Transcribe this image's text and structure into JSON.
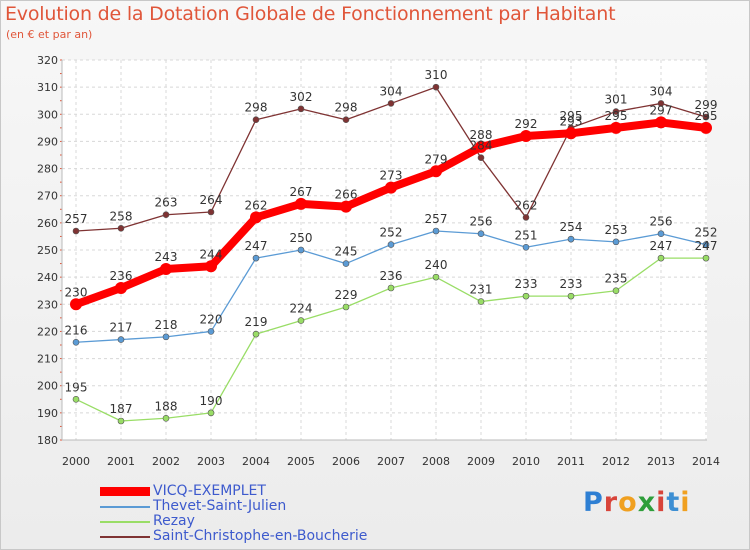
{
  "title": "Evolution de la Dotation Globale de Fonctionnement par Habitant",
  "subtitle": "(en € et par an)",
  "logo": {
    "text": "Proxiti",
    "letters": [
      "P",
      "r",
      "o",
      "x",
      "i",
      "t",
      "i"
    ],
    "letter_colors": [
      "#2e7fd3",
      "#d8443a",
      "#f0a020",
      "#2e9e3a",
      "#d8443a",
      "#3d8fd3",
      "#f0a020"
    ]
  },
  "chart_data": {
    "type": "line",
    "title": "Evolution de la Dotation Globale de Fonctionnement par Habitant",
    "subtitle": "(en € et par an)",
    "x": [
      "2000",
      "2001",
      "2002",
      "2003",
      "2004",
      "2005",
      "2006",
      "2007",
      "2008",
      "2009",
      "2010",
      "2011",
      "2012",
      "2013",
      "2014"
    ],
    "yticks": [
      180,
      190,
      200,
      210,
      220,
      230,
      240,
      250,
      260,
      270,
      280,
      290,
      300,
      310,
      320
    ],
    "ylim": [
      180,
      320
    ],
    "grid": true,
    "legend_position": "bottom-left",
    "series": [
      {
        "name": "VICQ-EXEMPLET",
        "color": "#ff0000",
        "values": [
          230,
          236,
          243,
          244,
          262,
          267,
          266,
          273,
          279,
          288,
          292,
          293,
          295,
          297,
          295
        ],
        "labels": [
          "230",
          "236",
          "243",
          "244",
          "262",
          "267",
          "266",
          "273",
          "279",
          "288",
          "292",
          "293",
          "295",
          "297",
          "295"
        ]
      },
      {
        "name": "Thevet-Saint-Julien",
        "color": "#5b9bd5",
        "values": [
          216,
          217,
          218,
          220,
          247,
          250,
          245,
          252,
          257,
          256,
          251,
          254,
          253,
          256,
          252
        ],
        "labels": [
          "216",
          "217",
          "218",
          "220",
          "247",
          "250",
          "245",
          "252",
          "257",
          "256",
          "251",
          "254",
          "253",
          "256",
          "252"
        ]
      },
      {
        "name": "Rezay",
        "color": "#99dd66",
        "values": [
          195,
          187,
          188,
          190,
          219,
          224,
          229,
          236,
          240,
          231,
          233,
          233,
          235,
          247,
          247
        ],
        "labels": [
          "195",
          "187",
          "188",
          "190",
          "219",
          "224",
          "229",
          "236",
          "240",
          "231",
          "233",
          "233",
          "235",
          "247",
          "247"
        ]
      },
      {
        "name": "Saint-Christophe-en-Boucherie",
        "color": "#7f3333",
        "values": [
          257,
          258,
          263,
          264,
          298,
          302,
          298,
          304,
          310,
          284,
          262,
          295,
          301,
          304,
          299
        ],
        "labels": [
          "257",
          "258",
          "263",
          "264",
          "298",
          "302",
          "298",
          "304",
          "310",
          "284",
          "262",
          "295",
          "301",
          "304",
          "299"
        ]
      }
    ]
  }
}
